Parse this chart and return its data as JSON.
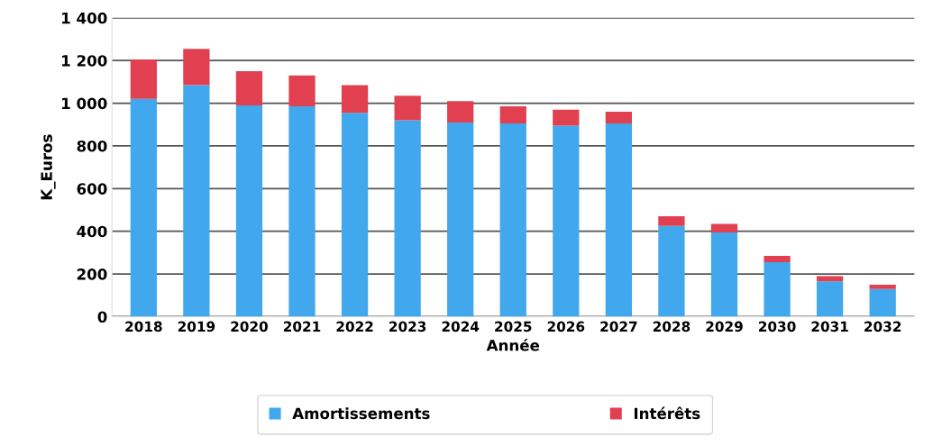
{
  "chart_data": {
    "type": "bar",
    "stacked": true,
    "xlabel": "Année",
    "ylabel": "K_Euros",
    "categories": [
      "2018",
      "2019",
      "2020",
      "2021",
      "2022",
      "2023",
      "2024",
      "2025",
      "2026",
      "2027",
      "2028",
      "2029",
      "2030",
      "2031",
      "2032"
    ],
    "series": [
      {
        "name": "Amortissements",
        "color": "#41a8ee",
        "values": [
          1020,
          1085,
          990,
          985,
          955,
          920,
          910,
          905,
          895,
          905,
          425,
          395,
          255,
          165,
          130
        ]
      },
      {
        "name": "Intérêts",
        "color": "#e04050",
        "values": [
          185,
          170,
          160,
          145,
          130,
          115,
          100,
          80,
          75,
          55,
          45,
          40,
          30,
          25,
          20
        ]
      }
    ],
    "ylim": [
      0,
      1400
    ],
    "yticks": [
      0,
      {
        "value": 200,
        "label": "200"
      },
      {
        "value": 400,
        "label": "400"
      },
      {
        "value": 600,
        "label": "600"
      },
      {
        "value": 800,
        "label": "800"
      },
      {
        "value": 1000,
        "label": "1 000"
      },
      {
        "value": 1200,
        "label": "1 200"
      },
      {
        "value": 1400,
        "label": "1 400"
      }
    ],
    "grid": "y",
    "legend": "bottom"
  }
}
